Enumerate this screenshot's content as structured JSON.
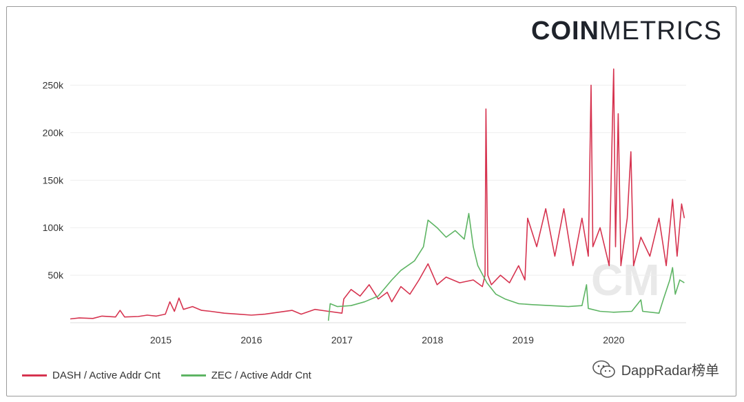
{
  "brand": {
    "bold": "COIN",
    "light": "METRICS"
  },
  "watermark": {
    "text": "DappRadar榜单",
    "icon": "wechat-icon"
  },
  "colors": {
    "dash": "#d6334f",
    "zec": "#5db463",
    "grid": "#eeeeee",
    "watermark_logo": "#e9e9e9"
  },
  "chart_data": {
    "type": "line",
    "x_ticks": [
      "2015",
      "2016",
      "2017",
      "2018",
      "2019",
      "2020"
    ],
    "y_ticks": [
      {
        "value": 50000,
        "label": "50k"
      },
      {
        "value": 100000,
        "label": "100k"
      },
      {
        "value": 150000,
        "label": "150k"
      },
      {
        "value": 200000,
        "label": "200k"
      },
      {
        "value": 250000,
        "label": "250k"
      }
    ],
    "xlim": [
      2014.0,
      2020.8
    ],
    "ylim": [
      0,
      270000
    ],
    "grid": true,
    "legend_position": "bottom-left",
    "series": [
      {
        "name": "DASH / Active Addr Cnt",
        "color": "#d6334f",
        "points": [
          [
            2014.0,
            4000
          ],
          [
            2014.1,
            5000
          ],
          [
            2014.25,
            4500
          ],
          [
            2014.35,
            7000
          ],
          [
            2014.5,
            6000
          ],
          [
            2014.55,
            13000
          ],
          [
            2014.6,
            6000
          ],
          [
            2014.75,
            6500
          ],
          [
            2014.85,
            8000
          ],
          [
            2014.95,
            7000
          ],
          [
            2015.05,
            9000
          ],
          [
            2015.1,
            22000
          ],
          [
            2015.15,
            12000
          ],
          [
            2015.2,
            26000
          ],
          [
            2015.25,
            14000
          ],
          [
            2015.35,
            17000
          ],
          [
            2015.45,
            13000
          ],
          [
            2015.55,
            12000
          ],
          [
            2015.7,
            10000
          ],
          [
            2015.85,
            9000
          ],
          [
            2016.0,
            8000
          ],
          [
            2016.15,
            9000
          ],
          [
            2016.3,
            11000
          ],
          [
            2016.45,
            13000
          ],
          [
            2016.55,
            9000
          ],
          [
            2016.7,
            14000
          ],
          [
            2016.85,
            12000
          ],
          [
            2017.0,
            10000
          ],
          [
            2017.02,
            25000
          ],
          [
            2017.1,
            35000
          ],
          [
            2017.2,
            28000
          ],
          [
            2017.3,
            40000
          ],
          [
            2017.4,
            25000
          ],
          [
            2017.5,
            32000
          ],
          [
            2017.55,
            22000
          ],
          [
            2017.65,
            38000
          ],
          [
            2017.75,
            30000
          ],
          [
            2017.85,
            45000
          ],
          [
            2017.95,
            62000
          ],
          [
            2018.05,
            40000
          ],
          [
            2018.15,
            48000
          ],
          [
            2018.3,
            42000
          ],
          [
            2018.45,
            45000
          ],
          [
            2018.55,
            38000
          ],
          [
            2018.58,
            50000
          ],
          [
            2018.59,
            225000
          ],
          [
            2018.61,
            50000
          ],
          [
            2018.65,
            40000
          ],
          [
            2018.75,
            50000
          ],
          [
            2018.85,
            42000
          ],
          [
            2018.95,
            60000
          ],
          [
            2019.02,
            45000
          ],
          [
            2019.05,
            110000
          ],
          [
            2019.15,
            80000
          ],
          [
            2019.25,
            120000
          ],
          [
            2019.35,
            70000
          ],
          [
            2019.45,
            120000
          ],
          [
            2019.55,
            60000
          ],
          [
            2019.65,
            110000
          ],
          [
            2019.72,
            70000
          ],
          [
            2019.75,
            250000
          ],
          [
            2019.77,
            80000
          ],
          [
            2019.85,
            100000
          ],
          [
            2019.95,
            60000
          ],
          [
            2020.0,
            267000
          ],
          [
            2020.02,
            80000
          ],
          [
            2020.05,
            220000
          ],
          [
            2020.08,
            60000
          ],
          [
            2020.15,
            110000
          ],
          [
            2020.19,
            180000
          ],
          [
            2020.22,
            60000
          ],
          [
            2020.3,
            90000
          ],
          [
            2020.4,
            70000
          ],
          [
            2020.5,
            110000
          ],
          [
            2020.58,
            60000
          ],
          [
            2020.65,
            130000
          ],
          [
            2020.7,
            70000
          ],
          [
            2020.75,
            125000
          ],
          [
            2020.78,
            110000
          ]
        ]
      },
      {
        "name": "ZEC / Active Addr Cnt",
        "color": "#5db463",
        "points": [
          [
            2016.85,
            2000
          ],
          [
            2016.87,
            20000
          ],
          [
            2016.95,
            17000
          ],
          [
            2017.1,
            18000
          ],
          [
            2017.25,
            22000
          ],
          [
            2017.4,
            28000
          ],
          [
            2017.55,
            45000
          ],
          [
            2017.65,
            55000
          ],
          [
            2017.8,
            65000
          ],
          [
            2017.9,
            80000
          ],
          [
            2017.95,
            108000
          ],
          [
            2018.05,
            100000
          ],
          [
            2018.15,
            90000
          ],
          [
            2018.25,
            97000
          ],
          [
            2018.35,
            88000
          ],
          [
            2018.4,
            115000
          ],
          [
            2018.45,
            80000
          ],
          [
            2018.5,
            60000
          ],
          [
            2018.6,
            42000
          ],
          [
            2018.7,
            30000
          ],
          [
            2018.8,
            25000
          ],
          [
            2018.95,
            20000
          ],
          [
            2019.1,
            19000
          ],
          [
            2019.3,
            18000
          ],
          [
            2019.5,
            17000
          ],
          [
            2019.65,
            18000
          ],
          [
            2019.7,
            40000
          ],
          [
            2019.72,
            15000
          ],
          [
            2019.85,
            12000
          ],
          [
            2020.0,
            11000
          ],
          [
            2020.2,
            12000
          ],
          [
            2020.3,
            24000
          ],
          [
            2020.32,
            12000
          ],
          [
            2020.5,
            10000
          ],
          [
            2020.55,
            25000
          ],
          [
            2020.62,
            45000
          ],
          [
            2020.65,
            58000
          ],
          [
            2020.68,
            30000
          ],
          [
            2020.73,
            45000
          ],
          [
            2020.78,
            42000
          ]
        ]
      }
    ]
  }
}
